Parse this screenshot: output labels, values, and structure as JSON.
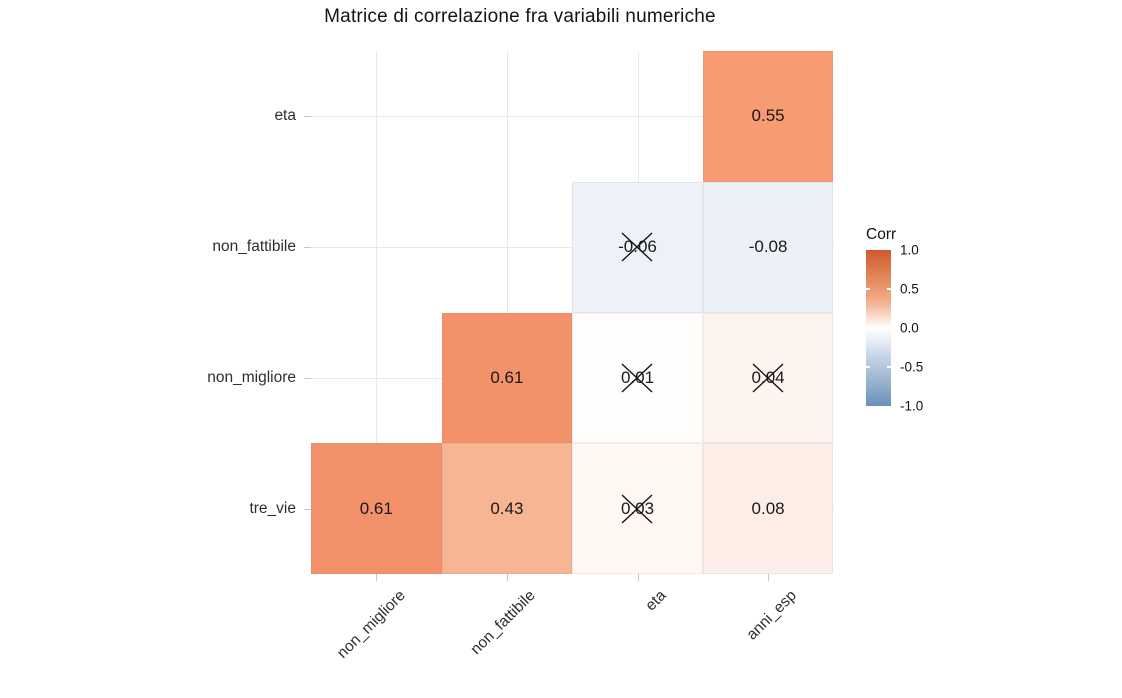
{
  "title": "Matrice di correlazione fra variabili numeriche",
  "legend": {
    "title": "Corr",
    "tick_labels": [
      "1.0",
      "0.5",
      "0.0",
      "-0.5",
      "-1.0"
    ],
    "high_color": "#CE5A2E",
    "mid_color": "#FFFFFF",
    "low_color": "#6991BA"
  },
  "chart_data": {
    "type": "heatmap",
    "title": "Matrice di correlazione fra variabili numeriche",
    "x_categories": [
      "non_migliore",
      "non_fattibile",
      "eta",
      "anni_esp"
    ],
    "y_categories": [
      "eta",
      "non_fattibile",
      "non_migliore",
      "tre_vie"
    ],
    "legend_title": "Corr",
    "color_limits": [
      -1,
      1
    ],
    "colorscale": {
      "low": "#6991BA",
      "mid": "#FFFFFF",
      "high": "#CE5A2E"
    },
    "grid": true,
    "legend_position": "right",
    "note": "lower-triangle correlation matrix; crossed cells marked not significant with an X",
    "cells": [
      {
        "row": 0,
        "y": "eta",
        "col": 3,
        "x": "anni_esp",
        "value": 0.55,
        "label": "0.55",
        "crossed": false,
        "color": "#F79B72"
      },
      {
        "row": 1,
        "y": "non_fattibile",
        "col": 2,
        "x": "eta",
        "value": -0.06,
        "label": "-0.06",
        "crossed": true,
        "color": "#EEF2F8"
      },
      {
        "row": 1,
        "y": "non_fattibile",
        "col": 3,
        "x": "anni_esp",
        "value": -0.08,
        "label": "-0.08",
        "crossed": false,
        "color": "#ECF1F7"
      },
      {
        "row": 2,
        "y": "non_migliore",
        "col": 1,
        "x": "non_fattibile",
        "value": 0.61,
        "label": "0.61",
        "crossed": false,
        "color": "#F2916A"
      },
      {
        "row": 2,
        "y": "non_migliore",
        "col": 2,
        "x": "eta",
        "value": 0.01,
        "label": "0.01",
        "crossed": true,
        "color": "#FFFDFB"
      },
      {
        "row": 2,
        "y": "non_migliore",
        "col": 3,
        "x": "anni_esp",
        "value": 0.04,
        "label": "0.04",
        "crossed": true,
        "color": "#FDF4EE"
      },
      {
        "row": 3,
        "y": "tre_vie",
        "col": 0,
        "x": "non_migliore",
        "value": 0.61,
        "label": "0.61",
        "crossed": false,
        "color": "#F2916A"
      },
      {
        "row": 3,
        "y": "tre_vie",
        "col": 1,
        "x": "non_fattibile",
        "value": 0.43,
        "label": "0.43",
        "crossed": false,
        "color": "#F7B593"
      },
      {
        "row": 3,
        "y": "tre_vie",
        "col": 2,
        "x": "eta",
        "value": 0.03,
        "label": "0.03",
        "crossed": true,
        "color": "#FEF7F2"
      },
      {
        "row": 3,
        "y": "tre_vie",
        "col": 3,
        "x": "anni_esp",
        "value": 0.08,
        "label": "0.08",
        "crossed": false,
        "color": "#FCEEE6"
      }
    ]
  }
}
